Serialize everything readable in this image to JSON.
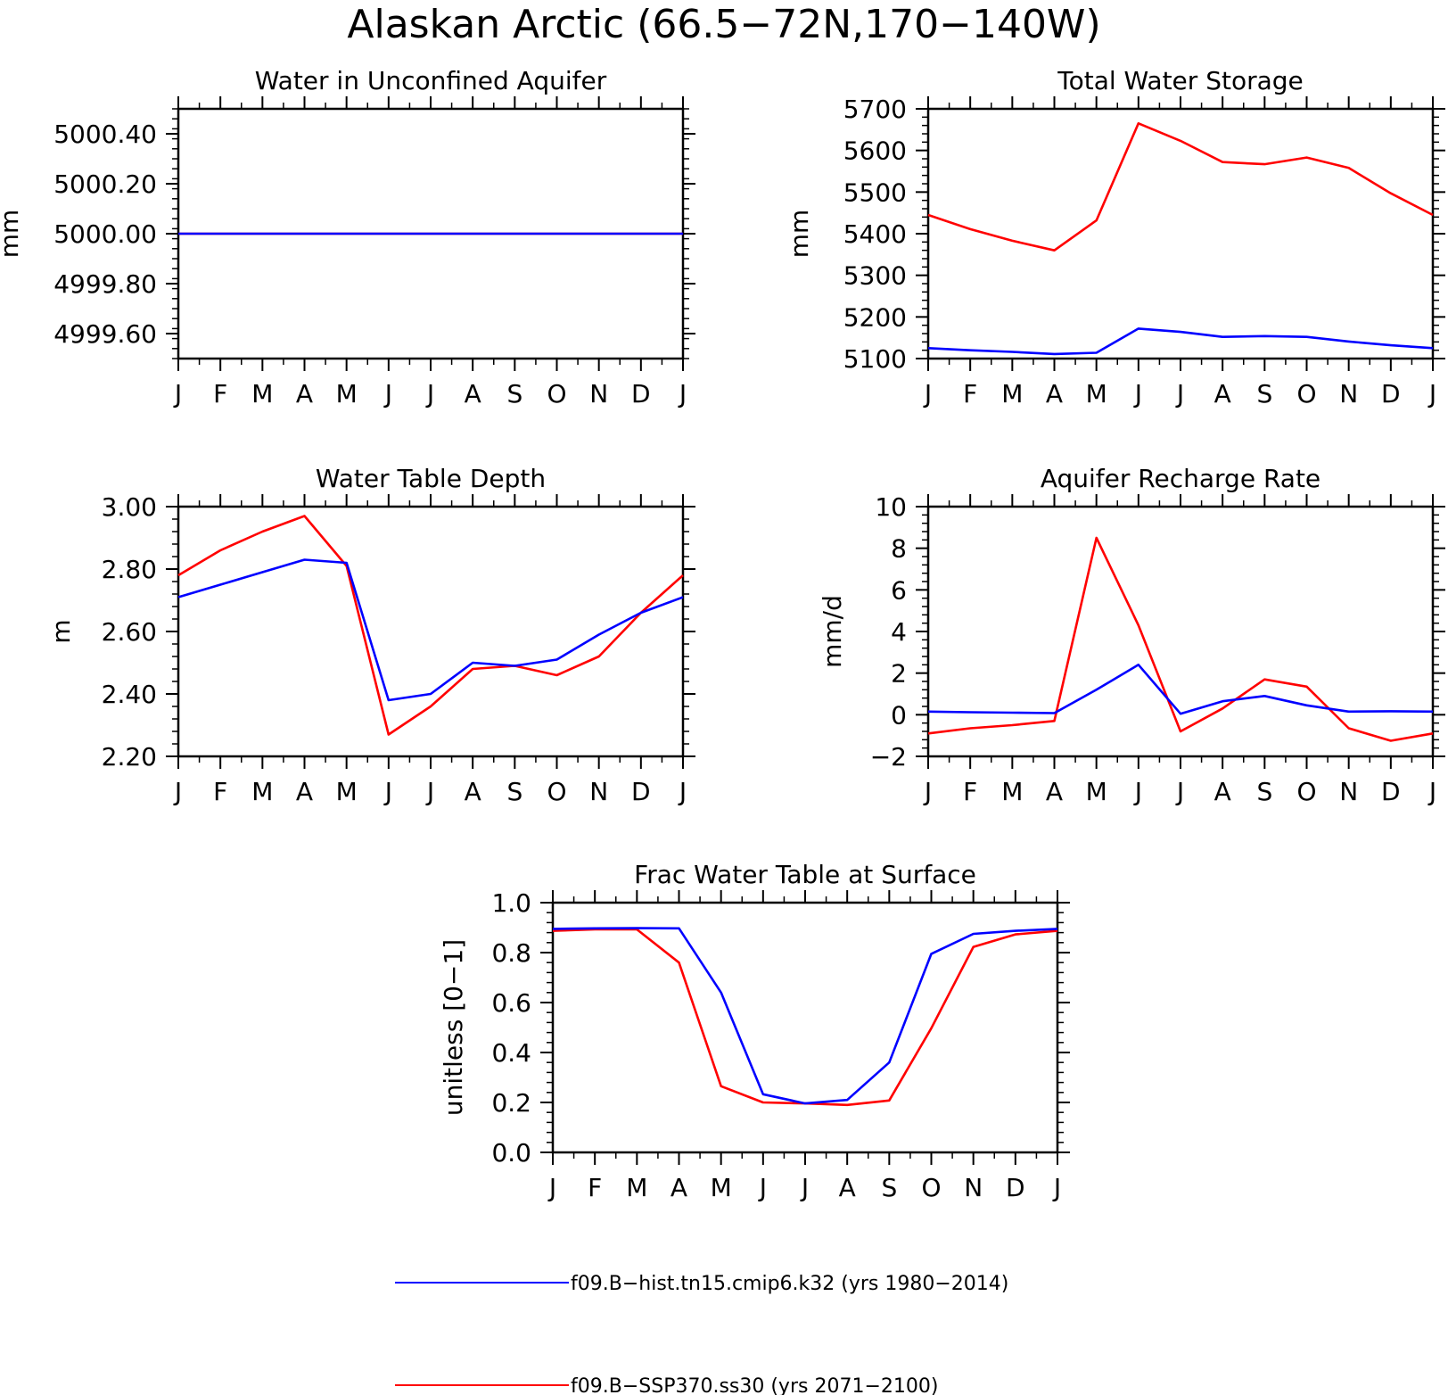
{
  "figure": {
    "title": "Alaskan Arctic (66.5−72N,170−140W)"
  },
  "colors": {
    "hist": "#0000ff",
    "ssp": "#ff0000",
    "axes": "#000000",
    "background": "#ffffff"
  },
  "legend": {
    "items": [
      {
        "label": "f09.B−hist.tn15.cmip6.k32 (yrs 1980−2014)",
        "color": "#0000ff"
      },
      {
        "label": "f09.B−SSP370.ss30 (yrs 2071−2100)",
        "color": "#ff0000"
      }
    ]
  },
  "chart_data": [
    {
      "type": "line",
      "title": "Water in Unconfined Aquifer",
      "ylabel": "mm",
      "xlabel": "",
      "x_ticks": [
        "J",
        "F",
        "M",
        "A",
        "M",
        "J",
        "J",
        "A",
        "S",
        "O",
        "N",
        "D",
        "J"
      ],
      "ylim": [
        4999.5,
        5000.5
      ],
      "y_ticks": [
        "4999.60",
        "4999.80",
        "5000.00",
        "5000.20",
        "5000.40"
      ],
      "y_tick_values": [
        4999.6,
        4999.8,
        5000.0,
        5000.2,
        5000.4
      ],
      "series": [
        {
          "values": [
            5000,
            5000,
            5000,
            5000,
            5000,
            5000,
            5000,
            5000,
            5000,
            5000,
            5000,
            5000,
            5000
          ],
          "color": "#ff0000"
        },
        {
          "values": [
            5000,
            5000,
            5000,
            5000,
            5000,
            5000,
            5000,
            5000,
            5000,
            5000,
            5000,
            5000,
            5000
          ],
          "color": "#0000ff"
        }
      ]
    },
    {
      "type": "line",
      "title": "Total Water Storage",
      "ylabel": "mm",
      "xlabel": "",
      "x_ticks": [
        "J",
        "F",
        "M",
        "A",
        "M",
        "J",
        "J",
        "A",
        "S",
        "O",
        "N",
        "D",
        "J"
      ],
      "ylim": [
        5100,
        5700
      ],
      "y_ticks": [
        "5100",
        "5200",
        "5300",
        "5400",
        "5500",
        "5600",
        "5700"
      ],
      "y_tick_values": [
        5100,
        5200,
        5300,
        5400,
        5500,
        5600,
        5700
      ],
      "series": [
        {
          "values": [
            5445,
            5411,
            5383,
            5360,
            5432,
            5665,
            5623,
            5572,
            5567,
            5583,
            5558,
            5497,
            5445
          ],
          "color": "#ff0000"
        },
        {
          "values": [
            5125,
            5120,
            5116,
            5111,
            5114,
            5172,
            5164,
            5152,
            5154,
            5152,
            5141,
            5132,
            5125
          ],
          "color": "#0000ff"
        }
      ]
    },
    {
      "type": "line",
      "title": "Water Table Depth",
      "ylabel": "m",
      "xlabel": "",
      "x_ticks": [
        "J",
        "F",
        "M",
        "A",
        "M",
        "J",
        "J",
        "A",
        "S",
        "O",
        "N",
        "D",
        "J"
      ],
      "ylim": [
        2.2,
        3.0
      ],
      "y_ticks": [
        "2.20",
        "2.40",
        "2.60",
        "2.80",
        "3.00"
      ],
      "y_tick_values": [
        2.2,
        2.4,
        2.6,
        2.8,
        3.0
      ],
      "series": [
        {
          "values": [
            2.78,
            2.86,
            2.92,
            2.97,
            2.81,
            2.27,
            2.36,
            2.48,
            2.49,
            2.46,
            2.52,
            2.66,
            2.78
          ],
          "color": "#ff0000"
        },
        {
          "values": [
            2.71,
            2.75,
            2.79,
            2.83,
            2.82,
            2.38,
            2.4,
            2.5,
            2.49,
            2.51,
            2.59,
            2.66,
            2.71
          ],
          "color": "#0000ff"
        }
      ]
    },
    {
      "type": "line",
      "title": "Aquifer Recharge Rate",
      "ylabel": "mm/d",
      "xlabel": "",
      "x_ticks": [
        "J",
        "F",
        "M",
        "A",
        "M",
        "J",
        "J",
        "A",
        "S",
        "O",
        "N",
        "D",
        "J"
      ],
      "ylim": [
        -2,
        10
      ],
      "y_ticks": [
        "−2",
        "0",
        "2",
        "4",
        "6",
        "8",
        "10"
      ],
      "y_tick_values": [
        -2,
        0,
        2,
        4,
        6,
        8,
        10
      ],
      "series": [
        {
          "values": [
            -0.9,
            -0.65,
            -0.5,
            -0.3,
            8.5,
            4.3,
            -0.8,
            0.3,
            1.7,
            1.35,
            -0.65,
            -1.25,
            -0.9
          ],
          "color": "#ff0000"
        },
        {
          "values": [
            0.15,
            0.12,
            0.1,
            0.08,
            1.2,
            2.4,
            0.05,
            0.65,
            0.9,
            0.45,
            0.15,
            0.17,
            0.15
          ],
          "color": "#0000ff"
        }
      ]
    },
    {
      "type": "line",
      "title": "Frac Water Table at Surface",
      "ylabel": "unitless [0−1]",
      "xlabel": "",
      "x_ticks": [
        "J",
        "F",
        "M",
        "A",
        "M",
        "J",
        "J",
        "A",
        "S",
        "O",
        "N",
        "D",
        "J"
      ],
      "ylim": [
        0.0,
        1.0
      ],
      "y_ticks": [
        "0.0",
        "0.2",
        "0.4",
        "0.6",
        "0.8",
        "1.0"
      ],
      "y_tick_values": [
        0.0,
        0.2,
        0.4,
        0.6,
        0.8,
        1.0
      ],
      "series": [
        {
          "values": [
            0.887,
            0.893,
            0.893,
            0.76,
            0.265,
            0.2,
            0.196,
            0.19,
            0.208,
            0.497,
            0.823,
            0.873,
            0.887
          ],
          "color": "#ff0000"
        },
        {
          "values": [
            0.895,
            0.897,
            0.898,
            0.897,
            0.64,
            0.233,
            0.196,
            0.21,
            0.36,
            0.795,
            0.875,
            0.887,
            0.895
          ],
          "color": "#0000ff"
        }
      ]
    }
  ]
}
